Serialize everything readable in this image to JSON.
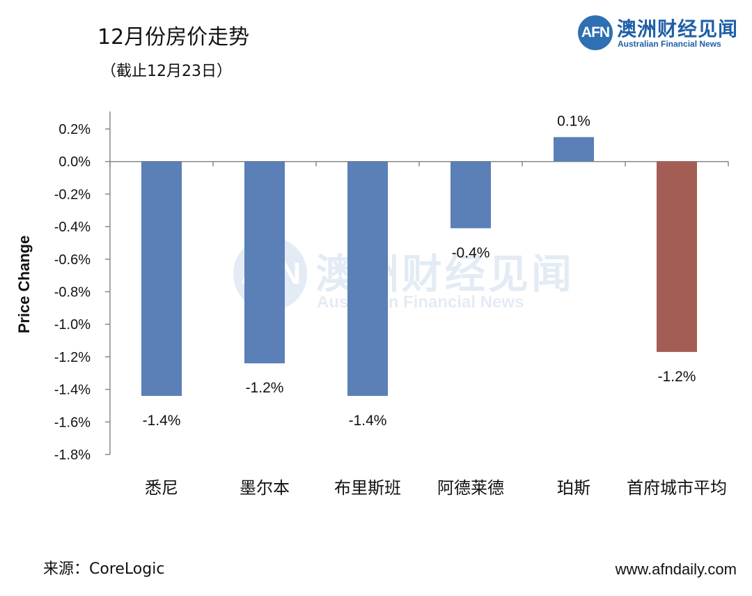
{
  "header": {
    "title": "12月份房价走势",
    "subtitle": "（截止12月23日）"
  },
  "logo": {
    "mark": "AFN",
    "name_cn": "澳洲财经见闻",
    "name_en": "Australian Financial News",
    "color": "#1f5fa8"
  },
  "watermark": {
    "mark": "AFN",
    "name_cn": "澳洲财经见闻",
    "name_en": "Australian Financial News"
  },
  "footer": {
    "source": "来源：CoreLogic",
    "website": "www.afndaily.com"
  },
  "chart_data": {
    "type": "bar",
    "title": "12月份房价走势",
    "subtitle": "（截止12月23日）",
    "xlabel": "",
    "ylabel": "Price Change",
    "categories": [
      "悉尼",
      "墨尔本",
      "布里斯班",
      "阿德莱德",
      "珀斯",
      "首府城市平均"
    ],
    "values": [
      -1.44,
      -1.24,
      -1.44,
      -0.41,
      0.15,
      -1.17
    ],
    "data_labels": [
      "-1.4%",
      "-1.2%",
      "-1.4%",
      "-0.4%",
      "0.1%",
      "-1.2%"
    ],
    "bar_colors": [
      "#5b7fb7",
      "#5b7fb7",
      "#5b7fb7",
      "#5b7fb7",
      "#5b7fb7",
      "#a45d55"
    ],
    "ylim": [
      -1.8,
      0.2
    ],
    "yticks": [
      0.2,
      0.0,
      -0.2,
      -0.4,
      -0.6,
      -0.8,
      -1.0,
      -1.2,
      -1.4,
      -1.6,
      -1.8
    ],
    "ytick_labels": [
      "0.2%",
      "0.0%",
      "-0.2%",
      "-0.4%",
      "-0.6%",
      "-0.8%",
      "-1.0%",
      "-1.2%",
      "-1.4%",
      "-1.6%",
      "-1.8%"
    ],
    "grid": false,
    "legend": "none"
  }
}
